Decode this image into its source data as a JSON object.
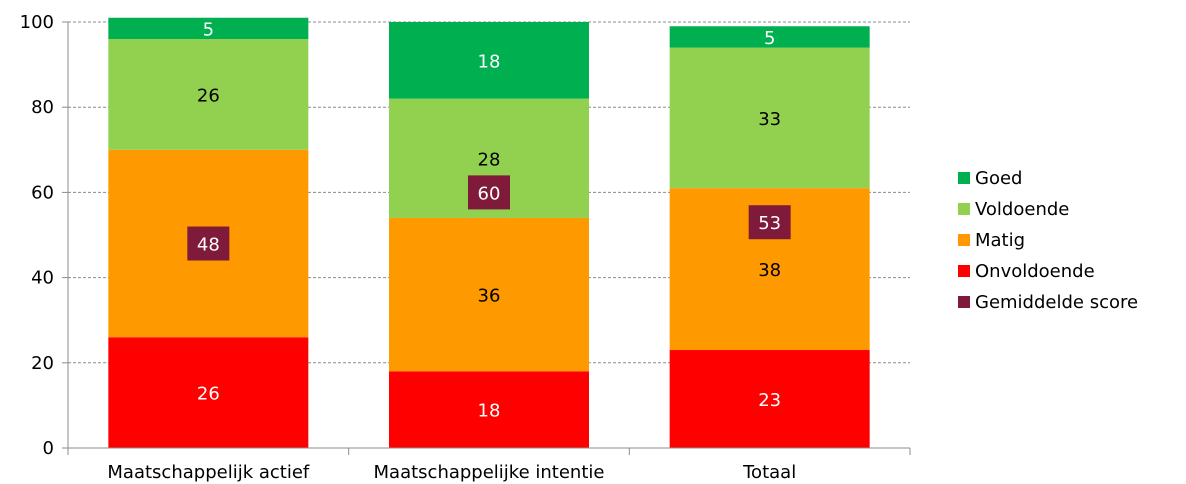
{
  "chart_data": {
    "type": "bar",
    "stacked": true,
    "categories": [
      "Maatschappelijk actief",
      "Maatschappelijke intentie",
      "Totaal"
    ],
    "series": [
      {
        "name": "Onvoldoende",
        "color": "#ff0000",
        "values": [
          26,
          18,
          23
        ],
        "label_color": "#ffffff"
      },
      {
        "name": "Matig",
        "color": "#ff9900",
        "values": [
          44,
          36,
          38
        ],
        "label_color": "#000000"
      },
      {
        "name": "Voldoende",
        "color": "#92d050",
        "values": [
          26,
          28,
          33
        ],
        "label_color": "#000000"
      },
      {
        "name": "Goed",
        "color": "#00b050",
        "values": [
          5,
          18,
          5
        ],
        "label_color": "#ffffff"
      }
    ],
    "average_marker": {
      "name": "Gemiddelde score",
      "color": "#7f1a3a",
      "values": [
        48,
        60,
        53
      ]
    },
    "legend_order": [
      "Goed",
      "Voldoende",
      "Matig",
      "Onvoldoende",
      "Gemiddelde score"
    ],
    "legend_colors": [
      "#00b050",
      "#92d050",
      "#ff9900",
      "#ff0000",
      "#7f1a3a"
    ],
    "ylim": [
      0,
      100
    ],
    "yticks": [
      0,
      20,
      40,
      60,
      80,
      100
    ],
    "grid": true,
    "legend_position": "right",
    "title": "",
    "xlabel": "",
    "ylabel": ""
  }
}
